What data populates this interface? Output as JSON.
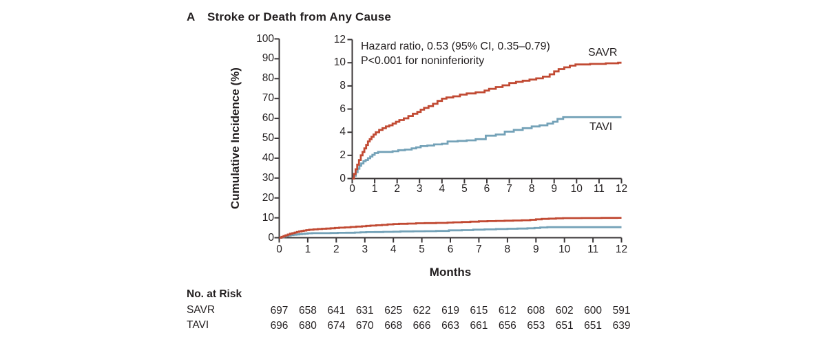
{
  "figure": {
    "panel": "A",
    "title": "Stroke or Death from Any Cause"
  },
  "colors": {
    "savr": "#c14a33",
    "tavi": "#74a2b8",
    "axis": "#3b3738",
    "text": "#231f20"
  },
  "annotation": {
    "line1": "Hazard ratio, 0.53 (95% CI, 0.35–0.79)",
    "line2": "P<0.001 for noninferiority"
  },
  "axis_labels": {
    "y": "Cumulative Incidence (%)",
    "x": "Months"
  },
  "curve_labels": {
    "savr": "SAVR",
    "tavi": "TAVI"
  },
  "chart_data": {
    "type": "line",
    "subtype": "step-cumulative-incidence",
    "title": "Stroke or Death from Any Cause",
    "xlabel": "Months",
    "ylabel": "Cumulative Incidence (%)",
    "legend_position": "inline-right",
    "grid": false,
    "main_axis": {
      "xlim": [
        0,
        12
      ],
      "ylim": [
        0,
        100
      ],
      "x_ticks": [
        0,
        1,
        2,
        3,
        4,
        5,
        6,
        7,
        8,
        9,
        10,
        11,
        12
      ],
      "y_ticks": [
        0,
        10,
        20,
        30,
        40,
        50,
        60,
        70,
        80,
        90,
        100
      ]
    },
    "inset_axis": {
      "xlim": [
        0,
        12
      ],
      "ylim": [
        0,
        12
      ],
      "x_ticks": [
        0,
        1,
        2,
        3,
        4,
        5,
        6,
        7,
        8,
        9,
        10,
        11,
        12
      ],
      "y_ticks": [
        0,
        2,
        4,
        6,
        8,
        10,
        12
      ]
    },
    "series": [
      {
        "name": "SAVR",
        "color": "#c14a33",
        "x": [
          0,
          0.08,
          0.15,
          0.22,
          0.3,
          0.38,
          0.46,
          0.54,
          0.62,
          0.7,
          0.78,
          0.86,
          0.95,
          1.05,
          1.2,
          1.35,
          1.5,
          1.65,
          1.8,
          1.95,
          2.1,
          2.3,
          2.5,
          2.7,
          2.9,
          3.05,
          3.2,
          3.4,
          3.6,
          3.8,
          4.0,
          4.2,
          4.5,
          4.8,
          5.1,
          5.5,
          5.9,
          6.1,
          6.4,
          6.7,
          7.0,
          7.3,
          7.6,
          7.9,
          8.2,
          8.5,
          8.8,
          9.0,
          9.2,
          9.45,
          9.7,
          9.95,
          10.6,
          11.3,
          11.85,
          12
        ],
        "y": [
          0,
          0.4,
          0.8,
          1.2,
          1.6,
          2.0,
          2.3,
          2.6,
          2.9,
          3.2,
          3.4,
          3.6,
          3.8,
          4.0,
          4.2,
          4.35,
          4.5,
          4.6,
          4.75,
          4.9,
          5.05,
          5.2,
          5.4,
          5.6,
          5.75,
          5.95,
          6.1,
          6.25,
          6.45,
          6.7,
          6.9,
          7.0,
          7.1,
          7.25,
          7.35,
          7.45,
          7.6,
          7.75,
          7.9,
          8.05,
          8.25,
          8.35,
          8.45,
          8.55,
          8.65,
          8.8,
          9.0,
          9.25,
          9.45,
          9.6,
          9.75,
          9.85,
          9.9,
          9.95,
          10.0,
          10.0
        ]
      },
      {
        "name": "TAVI",
        "color": "#74a2b8",
        "x": [
          0,
          0.08,
          0.16,
          0.24,
          0.32,
          0.4,
          0.5,
          0.6,
          0.7,
          0.8,
          0.9,
          1.0,
          1.15,
          1.8,
          2.05,
          2.35,
          2.65,
          2.85,
          3.05,
          3.35,
          3.65,
          4.0,
          4.25,
          4.7,
          5.1,
          5.5,
          5.95,
          6.4,
          6.8,
          7.2,
          7.6,
          8.0,
          8.35,
          8.7,
          8.95,
          9.15,
          9.4,
          12
        ],
        "y": [
          0,
          0.25,
          0.55,
          0.85,
          1.1,
          1.3,
          1.5,
          1.6,
          1.75,
          1.9,
          2.05,
          2.2,
          2.3,
          2.35,
          2.45,
          2.5,
          2.6,
          2.7,
          2.8,
          2.85,
          2.95,
          3.0,
          3.2,
          3.25,
          3.3,
          3.4,
          3.7,
          3.8,
          4.05,
          4.2,
          4.35,
          4.5,
          4.6,
          4.75,
          4.9,
          5.15,
          5.3,
          5.3
        ]
      }
    ],
    "annotations": [
      "Hazard ratio, 0.53 (95% CI, 0.35–0.79)",
      "P<0.001 for noninferiority"
    ]
  },
  "risk_table": {
    "header": "No. at Risk",
    "time_points": [
      0,
      1,
      2,
      3,
      4,
      5,
      6,
      7,
      8,
      9,
      10,
      11,
      12
    ],
    "rows": [
      {
        "label": "SAVR",
        "values": [
          "697",
          "658",
          "641",
          "631",
          "625",
          "622",
          "619",
          "615",
          "612",
          "608",
          "602",
          "600",
          "591"
        ]
      },
      {
        "label": "TAVI",
        "values": [
          "696",
          "680",
          "674",
          "670",
          "668",
          "666",
          "663",
          "661",
          "656",
          "653",
          "651",
          "651",
          "639"
        ]
      }
    ]
  }
}
